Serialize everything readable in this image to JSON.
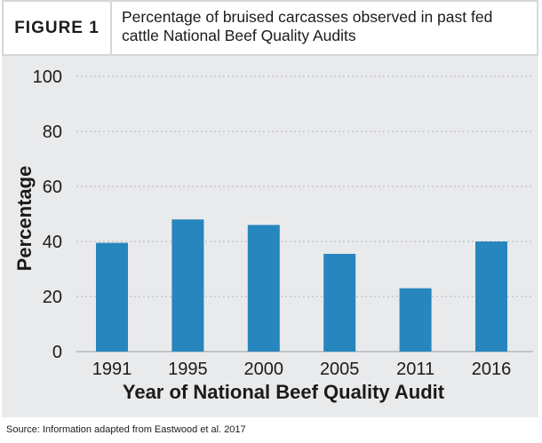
{
  "figure": {
    "label": "FIGURE 1",
    "title": "Percentage of bruised carcasses observed in past fed cattle National Beef Quality Audits"
  },
  "source": "Source: Information adapted from Eastwood et al. 2017",
  "colors": {
    "bar": "#2686bd",
    "panel_background": "#e9eaec",
    "gridline": "#b4b7bb",
    "text": "#1b1b1b"
  },
  "chart_data": {
    "type": "bar",
    "categories": [
      "1991",
      "1995",
      "2000",
      "2005",
      "2011",
      "2016"
    ],
    "values": [
      39.5,
      48,
      46,
      35.5,
      23,
      40
    ],
    "title": "",
    "xlabel": "Year of National Beef Quality Audit",
    "ylabel": "Percentage",
    "ylim": [
      0,
      100
    ],
    "yticks": [
      0,
      20,
      40,
      60,
      80,
      100
    ],
    "grid": true,
    "legend": "none"
  }
}
